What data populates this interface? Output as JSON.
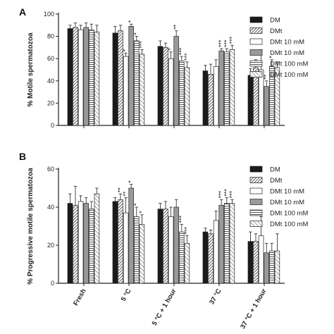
{
  "chart_data": [
    {
      "panel_label": "A",
      "type": "bar",
      "ylabel": "% Motile spermatozoa",
      "ylim": [
        0,
        100
      ],
      "yticks": [
        0,
        20,
        40,
        60,
        80,
        100
      ],
      "categories": [
        "Fresh",
        "5 °C",
        "5 °C + 1 hour",
        "37 °C",
        "37 °C + 1 hour"
      ],
      "series": [
        {
          "name": "DM",
          "values": [
            87,
            83,
            71,
            49,
            45
          ],
          "errors": [
            3,
            6,
            5,
            5,
            6
          ]
        },
        {
          "name": "DMt",
          "values": [
            88,
            85,
            70,
            46,
            52
          ],
          "errors": [
            4,
            5,
            4,
            9,
            7
          ]
        },
        {
          "name": "DMt 10 mM",
          "values": [
            86,
            62,
            60,
            53,
            50
          ],
          "errors": [
            4,
            3,
            6,
            6,
            18
          ]
        },
        {
          "name": "DMt 10 mM",
          "values": [
            88,
            89,
            80,
            67,
            35
          ],
          "errors": [
            4,
            2,
            5,
            2,
            5
          ]
        },
        {
          "name": "DMt 100 mM",
          "values": [
            86,
            76,
            58,
            66,
            53
          ],
          "errors": [
            5,
            4,
            4,
            3,
            6
          ]
        },
        {
          "name": "DMt  100 mM",
          "values": [
            84,
            64,
            52,
            68,
            52
          ],
          "errors": [
            6,
            4,
            5,
            4,
            5
          ]
        }
      ],
      "annotations": [
        {
          "category": 1,
          "series": 2,
          "text": "*"
        },
        {
          "category": 1,
          "series": 3,
          "text": "*"
        },
        {
          "category": 1,
          "series": 4,
          "text": "*"
        },
        {
          "category": 1,
          "series": 5,
          "text": "***"
        },
        {
          "category": 2,
          "series": 2,
          "text": "*"
        },
        {
          "category": 2,
          "series": 3,
          "text": "**"
        },
        {
          "category": 2,
          "series": 4,
          "text": "***"
        },
        {
          "category": 2,
          "series": 5,
          "text": "***"
        },
        {
          "category": 3,
          "series": 3,
          "text": "***"
        },
        {
          "category": 3,
          "series": 4,
          "text": "***"
        },
        {
          "category": 3,
          "series": 5,
          "text": "***"
        },
        {
          "category": 4,
          "series": 3,
          "text": "**"
        },
        {
          "category": 4,
          "series": 4,
          "text": "*"
        }
      ]
    },
    {
      "panel_label": "B",
      "type": "bar",
      "ylabel": "% Progressive motile spermatozoa",
      "ylim": [
        0,
        60
      ],
      "yticks": [
        0,
        20,
        40,
        60
      ],
      "categories": [
        "Fresh",
        "5 °C",
        "5 °C + 1 hour",
        "37 °C",
        "37 °C + 1 hour"
      ],
      "series": [
        {
          "name": "DM",
          "values": [
            42,
            43,
            39,
            27,
            22
          ],
          "errors": [
            5,
            2,
            3,
            2,
            5
          ]
        },
        {
          "name": "DMt",
          "values": [
            41,
            44,
            39,
            26,
            22
          ],
          "errors": [
            10,
            3,
            4,
            2,
            4
          ]
        },
        {
          "name": "DMt 10 mM",
          "values": [
            43,
            37,
            35,
            33,
            25
          ],
          "errors": [
            3,
            8,
            5,
            5,
            10
          ]
        },
        {
          "name": "DMt 10 mM",
          "values": [
            42,
            50,
            40,
            41,
            16
          ],
          "errors": [
            3,
            2,
            4,
            3,
            5
          ]
        },
        {
          "name": "DMt 100 mM",
          "values": [
            39,
            35,
            27,
            42,
            17
          ],
          "errors": [
            4,
            5,
            4,
            3,
            4
          ]
        },
        {
          "name": "DMt 100 mM",
          "values": [
            47,
            31,
            21,
            42,
            17
          ],
          "errors": [
            3,
            5,
            4,
            2,
            9
          ]
        }
      ],
      "annotations": [
        {
          "category": 1,
          "series": 1,
          "text": "**"
        },
        {
          "category": 1,
          "series": 2,
          "text": "**"
        },
        {
          "category": 1,
          "series": 3,
          "text": "*"
        },
        {
          "category": 1,
          "series": 4,
          "text": "*"
        },
        {
          "category": 1,
          "series": 5,
          "text": "*"
        },
        {
          "category": 2,
          "series": 4,
          "text": "***"
        },
        {
          "category": 2,
          "series": 5,
          "text": "***"
        },
        {
          "category": 3,
          "series": 3,
          "text": "***"
        },
        {
          "category": 3,
          "series": 4,
          "text": "***"
        },
        {
          "category": 3,
          "series": 5,
          "text": "***"
        }
      ]
    }
  ],
  "colors": {
    "series_fills": [
      "#1a1a1a",
      "pattern-diag-dark",
      "#ffffff",
      "#9a9a9a",
      "pattern-hlines",
      "pattern-diag-light"
    ]
  }
}
